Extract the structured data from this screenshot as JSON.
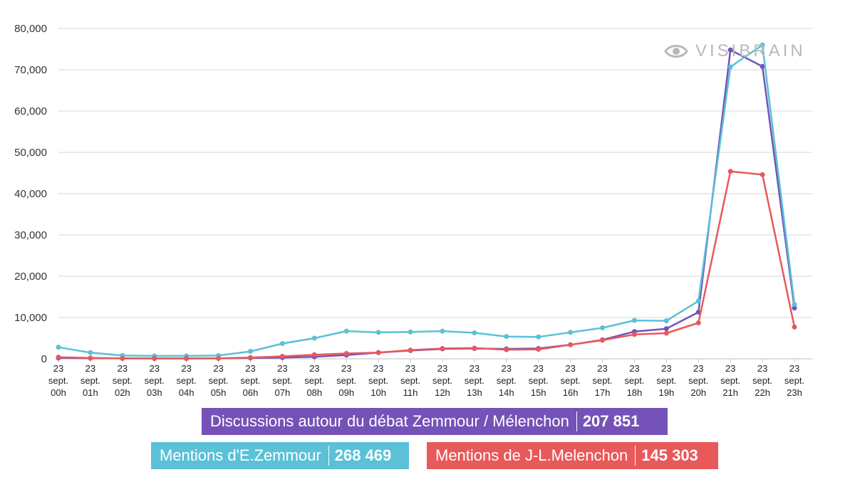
{
  "chart_data": {
    "type": "line",
    "categories": [
      [
        "23",
        "sept.",
        "00h"
      ],
      [
        "23",
        "sept.",
        "01h"
      ],
      [
        "23",
        "sept.",
        "02h"
      ],
      [
        "23",
        "sept.",
        "03h"
      ],
      [
        "23",
        "sept.",
        "04h"
      ],
      [
        "23",
        "sept.",
        "05h"
      ],
      [
        "23",
        "sept.",
        "06h"
      ],
      [
        "23",
        "sept.",
        "07h"
      ],
      [
        "23",
        "sept.",
        "08h"
      ],
      [
        "23",
        "sept.",
        "09h"
      ],
      [
        "23",
        "sept.",
        "10h"
      ],
      [
        "23",
        "sept.",
        "11h"
      ],
      [
        "23",
        "sept.",
        "12h"
      ],
      [
        "23",
        "sept.",
        "13h"
      ],
      [
        "23",
        "sept.",
        "14h"
      ],
      [
        "23",
        "sept.",
        "15h"
      ],
      [
        "23",
        "sept.",
        "16h"
      ],
      [
        "23",
        "sept.",
        "17h"
      ],
      [
        "23",
        "sept.",
        "18h"
      ],
      [
        "23",
        "sept.",
        "19h"
      ],
      [
        "23",
        "sept.",
        "20h"
      ],
      [
        "23",
        "sept.",
        "21h"
      ],
      [
        "23",
        "sept.",
        "22h"
      ],
      [
        "23",
        "sept.",
        "23h"
      ]
    ],
    "ylim": [
      0,
      80000
    ],
    "yticks": [
      0,
      10000,
      20000,
      30000,
      40000,
      50000,
      60000,
      70000,
      80000
    ],
    "ytick_labels": [
      "0",
      "10,000",
      "20,000",
      "30,000",
      "40,000",
      "50,000",
      "60,000",
      "70,000",
      "80,000"
    ],
    "grid": true,
    "series": [
      {
        "name": "Discussions autour du débat Zemmour / Mélenchon",
        "color": "#7452b8",
        "total": "207 851",
        "values": [
          200,
          150,
          100,
          80,
          80,
          100,
          200,
          300,
          500,
          900,
          1500,
          2000,
          2400,
          2500,
          2400,
          2500,
          3400,
          4600,
          6600,
          7300,
          11300,
          74800,
          70800,
          12300
        ]
      },
      {
        "name": "Mentions d'E.Zemmour",
        "color": "#5ac1d7",
        "total": "268 469",
        "values": [
          2800,
          1500,
          800,
          700,
          700,
          800,
          1800,
          3700,
          5000,
          6700,
          6400,
          6500,
          6700,
          6300,
          5400,
          5300,
          6400,
          7500,
          9300,
          9200,
          14000,
          70700,
          76000,
          13200
        ]
      },
      {
        "name": "Mentions de J-L.Melenchon",
        "color": "#e8595a",
        "total": "145 303",
        "values": [
          400,
          200,
          100,
          100,
          80,
          100,
          300,
          600,
          1000,
          1300,
          1500,
          2100,
          2500,
          2600,
          2200,
          2300,
          3400,
          4500,
          5900,
          6200,
          8700,
          45400,
          44600,
          7700
        ]
      }
    ]
  },
  "watermark": {
    "text": "VISIBRAIN",
    "icon": "eye-icon"
  }
}
